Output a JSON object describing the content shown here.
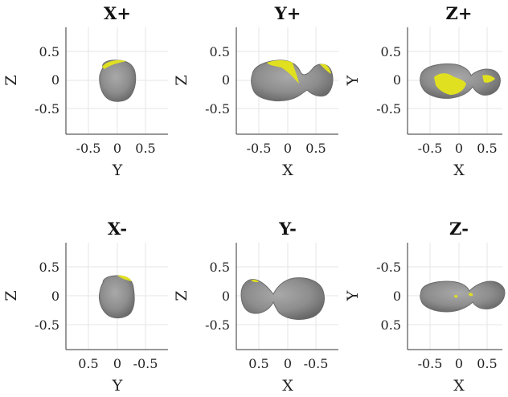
{
  "chart_data": [
    {
      "type": "other",
      "title": "X+",
      "xlabel": "Y",
      "ylabel": "Z",
      "xticks": [
        "-0.5",
        "0",
        "0.5"
      ],
      "yticks": [
        "0.5",
        "0",
        "-0.5"
      ],
      "xlim": [
        -0.9,
        0.9
      ],
      "ylim": [
        -0.9,
        0.9
      ],
      "x_reversed": false,
      "y_reversed": false,
      "grid": true
    },
    {
      "type": "other",
      "title": "Y+",
      "xlabel": "X",
      "ylabel": "Z",
      "xticks": [
        "-0.5",
        "0",
        "0.5"
      ],
      "yticks": [
        "0.5",
        "0",
        "-0.5"
      ],
      "xlim": [
        -0.9,
        0.9
      ],
      "ylim": [
        -0.9,
        0.9
      ],
      "x_reversed": false,
      "y_reversed": false,
      "grid": true
    },
    {
      "type": "other",
      "title": "Z+",
      "xlabel": "X",
      "ylabel": "Y",
      "xticks": [
        "-0.5",
        "0",
        "0.5"
      ],
      "yticks": [
        "0.5",
        "0",
        "-0.5"
      ],
      "xlim": [
        -0.9,
        0.9
      ],
      "ylim": [
        -0.9,
        0.9
      ],
      "x_reversed": false,
      "y_reversed": false,
      "grid": true
    },
    {
      "type": "other",
      "title": "X-",
      "xlabel": "Y",
      "ylabel": "Z",
      "xticks": [
        "0.5",
        "0",
        "-0.5"
      ],
      "yticks": [
        "0.5",
        "0",
        "-0.5"
      ],
      "xlim": [
        -0.9,
        0.9
      ],
      "ylim": [
        -0.9,
        0.9
      ],
      "x_reversed": true,
      "y_reversed": false,
      "grid": true
    },
    {
      "type": "other",
      "title": "Y-",
      "xlabel": "X",
      "ylabel": "Z",
      "xticks": [
        "0.5",
        "0",
        "-0.5"
      ],
      "yticks": [
        "0.5",
        "0",
        "-0.5"
      ],
      "xlim": [
        -0.9,
        0.9
      ],
      "ylim": [
        -0.9,
        0.9
      ],
      "x_reversed": true,
      "y_reversed": false,
      "grid": true
    },
    {
      "type": "other",
      "title": "Z-",
      "xlabel": "X",
      "ylabel": "Y",
      "xticks": [
        "-0.5",
        "0",
        "0.5"
      ],
      "yticks": [
        "-0.5",
        "0",
        "0.5"
      ],
      "xlim": [
        -0.9,
        0.9
      ],
      "ylim": [
        -0.9,
        0.9
      ],
      "x_reversed": false,
      "y_reversed": true,
      "grid": true
    }
  ],
  "colors": {
    "body": "#8c8c8c",
    "body_dark": "#6e6e6e",
    "highlight": "#e8e82a"
  }
}
